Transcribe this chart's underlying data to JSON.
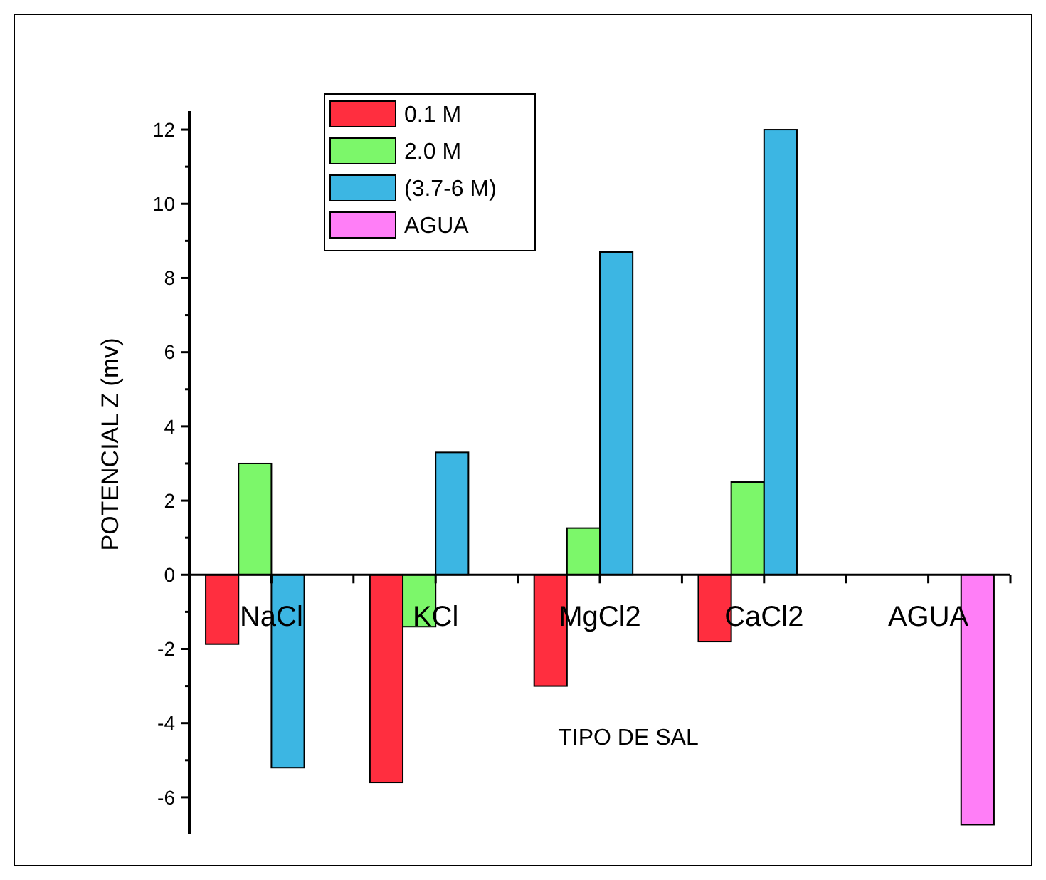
{
  "chart_data": {
    "type": "bar",
    "xlabel": "TIPO DE SAL",
    "ylabel": "POTENCIAL Z (mv)",
    "categories": [
      "NaCl",
      "KCl",
      "MgCl2",
      "CaCl2",
      "AGUA"
    ],
    "series": [
      {
        "name": "0.1 M",
        "color": "#ff2e3f",
        "values": [
          -1.87,
          -5.6,
          -3.0,
          -1.8,
          null
        ]
      },
      {
        "name": "2.0 M",
        "color": "#7cf76a",
        "values": [
          3.0,
          -1.4,
          1.26,
          2.5,
          null
        ]
      },
      {
        "name": "(3.7-6 M)",
        "color": "#3cb6e3",
        "values": [
          -5.2,
          3.3,
          8.7,
          12.0,
          null
        ]
      },
      {
        "name": "AGUA",
        "color": "#ff7ef7",
        "values": [
          null,
          null,
          null,
          null,
          -6.74
        ]
      }
    ],
    "ylim": [
      -7,
      12.5
    ],
    "yticks": [
      -6,
      -4,
      -2,
      0,
      2,
      4,
      6,
      8,
      10,
      12
    ],
    "legend": "top left",
    "grid": false
  }
}
